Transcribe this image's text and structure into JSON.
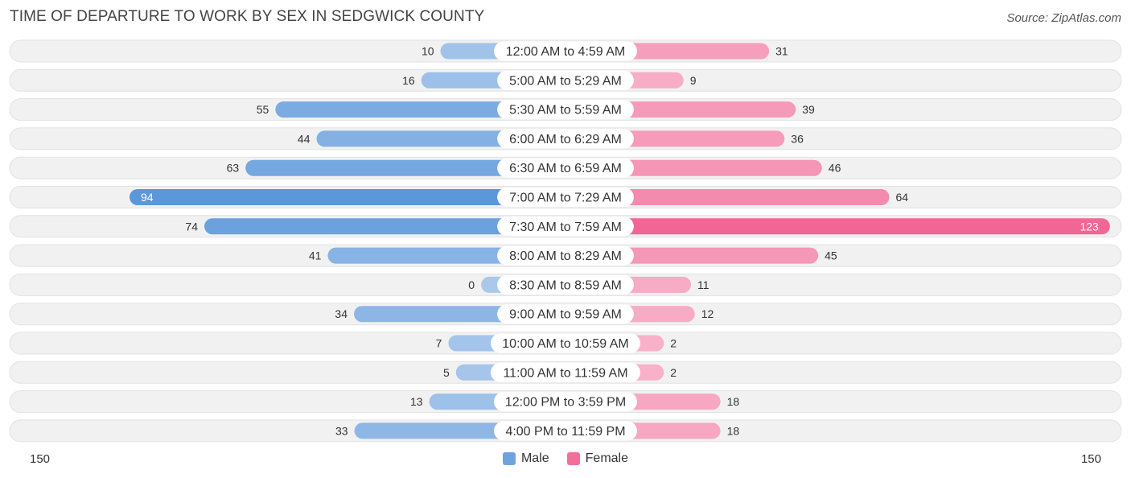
{
  "title": "TIME OF DEPARTURE TO WORK BY SEX IN SEDGWICK COUNTY",
  "source": "Source: ZipAtlas.com",
  "axis": {
    "left_label": "150",
    "right_label": "150"
  },
  "legend": [
    {
      "label": "Male",
      "color": "#6fa3dc"
    },
    {
      "label": "Female",
      "color": "#f07099"
    }
  ],
  "chart_data": {
    "type": "bar",
    "orientation": "horizontal-diverging",
    "categories": [
      "12:00 AM to 4:59 AM",
      "5:00 AM to 5:29 AM",
      "5:30 AM to 5:59 AM",
      "6:00 AM to 6:29 AM",
      "6:30 AM to 6:59 AM",
      "7:00 AM to 7:29 AM",
      "7:30 AM to 7:59 AM",
      "8:00 AM to 8:29 AM",
      "8:30 AM to 8:59 AM",
      "9:00 AM to 9:59 AM",
      "10:00 AM to 10:59 AM",
      "11:00 AM to 11:59 AM",
      "12:00 PM to 3:59 PM",
      "4:00 PM to 11:59 PM"
    ],
    "series": [
      {
        "name": "Male",
        "values": [
          10,
          16,
          55,
          44,
          63,
          94,
          74,
          41,
          0,
          34,
          7,
          5,
          13,
          33
        ]
      },
      {
        "name": "Female",
        "values": [
          31,
          9,
          39,
          36,
          46,
          64,
          123,
          45,
          11,
          12,
          2,
          2,
          18,
          18
        ]
      }
    ],
    "xlim": [
      -150,
      150
    ],
    "colors": {
      "male_light": "#a9c8ec",
      "male_dark": "#5b97db",
      "female_light": "#f8b2c9",
      "female_dark": "#f06795",
      "row_bg": "#f1f1f1",
      "row_border": "#e2e2e2"
    }
  }
}
